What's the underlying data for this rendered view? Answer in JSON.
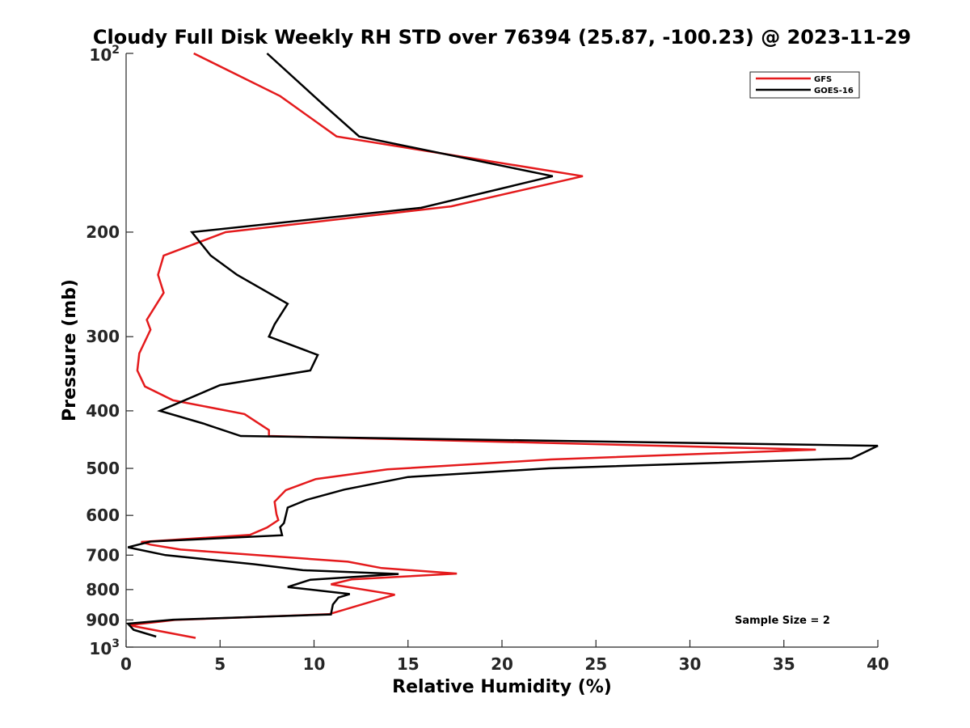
{
  "chart_data": {
    "type": "line",
    "title": "Cloudy Full Disk Weekly RH STD over 76394 (25.87, -100.23) @ 2023-11-29",
    "xlabel": "Relative Humidity (%)",
    "ylabel": "Pressure (mb)",
    "xlim": [
      0,
      40
    ],
    "ylim": [
      100,
      1000
    ],
    "y_scale": "log",
    "y_reversed": true,
    "grid": false,
    "legend_position": "top-right",
    "x_ticks": [
      "0",
      "5",
      "10",
      "15",
      "20",
      "25",
      "30",
      "35",
      "40"
    ],
    "y_ticks": [
      {
        "value": 100,
        "base": "10",
        "exp": "2"
      },
      {
        "value": 200,
        "label": "200"
      },
      {
        "value": 300,
        "label": "300"
      },
      {
        "value": 400,
        "label": "400"
      },
      {
        "value": 500,
        "label": "500"
      },
      {
        "value": 600,
        "label": "600"
      },
      {
        "value": 700,
        "label": "700"
      },
      {
        "value": 800,
        "label": "800"
      },
      {
        "value": 900,
        "label": "900"
      },
      {
        "value": 1000,
        "base": "10",
        "exp": "3"
      }
    ],
    "annotation": "Sample Size = 2",
    "series": [
      {
        "name": "GFS",
        "color": "#e41a1c",
        "points": [
          [
            3.6,
            100
          ],
          [
            8.2,
            118
          ],
          [
            11.2,
            138
          ],
          [
            24.3,
            161
          ],
          [
            17.3,
            181
          ],
          [
            5.3,
            200
          ],
          [
            2.0,
            219
          ],
          [
            1.7,
            236
          ],
          [
            2.0,
            253
          ],
          [
            1.1,
            281
          ],
          [
            1.3,
            292
          ],
          [
            0.7,
            320
          ],
          [
            0.6,
            342
          ],
          [
            1.0,
            364
          ],
          [
            2.5,
            384
          ],
          [
            6.3,
            405
          ],
          [
            7.6,
            431
          ],
          [
            7.6,
            441
          ],
          [
            36.7,
            465
          ],
          [
            22.6,
            483
          ],
          [
            13.9,
            502
          ],
          [
            10.1,
            521
          ],
          [
            8.5,
            544
          ],
          [
            7.9,
            569
          ],
          [
            8.0,
            597
          ],
          [
            8.1,
            611
          ],
          [
            7.5,
            629
          ],
          [
            6.6,
            647
          ],
          [
            0.8,
            665
          ],
          [
            1.3,
            672
          ],
          [
            2.9,
            685
          ],
          [
            11.8,
            718
          ],
          [
            13.6,
            736
          ],
          [
            17.6,
            752
          ],
          [
            12.0,
            769
          ],
          [
            10.9,
            784
          ],
          [
            14.3,
            816
          ],
          [
            10.8,
            880
          ],
          [
            2.6,
            900
          ],
          [
            0.2,
            918
          ],
          [
            0.5,
            923
          ],
          [
            3.7,
            965
          ]
        ]
      },
      {
        "name": "GOES-16",
        "color": "#000000",
        "points": [
          [
            7.5,
            100
          ],
          [
            10.5,
            122
          ],
          [
            12.4,
            138
          ],
          [
            22.7,
            161
          ],
          [
            15.7,
            182
          ],
          [
            3.5,
            200
          ],
          [
            4.5,
            219
          ],
          [
            5.9,
            236
          ],
          [
            8.6,
            264
          ],
          [
            7.9,
            286
          ],
          [
            7.6,
            300
          ],
          [
            10.2,
            322
          ],
          [
            9.8,
            342
          ],
          [
            5.0,
            362
          ],
          [
            1.8,
            400
          ],
          [
            4.1,
            420
          ],
          [
            6.1,
            441
          ],
          [
            40.0,
            458
          ],
          [
            38.6,
            481
          ],
          [
            22.5,
            500
          ],
          [
            15.0,
            517
          ],
          [
            11.6,
            543
          ],
          [
            9.6,
            565
          ],
          [
            8.6,
            582
          ],
          [
            8.5,
            600
          ],
          [
            8.4,
            618
          ],
          [
            8.2,
            628
          ],
          [
            8.3,
            648
          ],
          [
            1.3,
            664
          ],
          [
            0.1,
            679
          ],
          [
            2.1,
            700
          ],
          [
            6.8,
            725
          ],
          [
            9.4,
            742
          ],
          [
            14.5,
            753
          ],
          [
            9.8,
            770
          ],
          [
            8.6,
            792
          ],
          [
            11.9,
            814
          ],
          [
            11.3,
            825
          ],
          [
            11.0,
            848
          ],
          [
            10.9,
            881
          ],
          [
            2.5,
            899
          ],
          [
            0.1,
            913
          ],
          [
            0.4,
            935
          ],
          [
            1.6,
            960
          ]
        ]
      }
    ]
  }
}
